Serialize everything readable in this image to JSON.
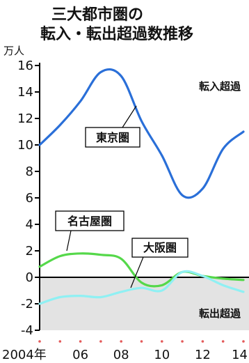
{
  "chart_data": {
    "type": "line",
    "title_line1": "三大都市圏の",
    "title_line2": "転入・転出超過数推移",
    "unit": "万人",
    "ylim": [
      -4,
      16
    ],
    "yticks": [
      16,
      14,
      12,
      10,
      8,
      6,
      4,
      2,
      0,
      -2,
      -4
    ],
    "xlim": [
      2004,
      2014
    ],
    "xticks": [
      {
        "x": 2004,
        "label": "2004年"
      },
      {
        "x": 2006,
        "label": "06"
      },
      {
        "x": 2008,
        "label": "08"
      },
      {
        "x": 2010,
        "label": "10"
      },
      {
        "x": 2012,
        "label": "12"
      },
      {
        "x": 2014,
        "label": "14"
      }
    ],
    "grid": false,
    "annotations": {
      "positive_region": "転入超過",
      "negative_region": "転出超過"
    },
    "series": [
      {
        "name": "東京圏",
        "color": "#2a6fd8",
        "x": [
          2004,
          2005,
          2006,
          2007,
          2008,
          2009,
          2010,
          2011,
          2012,
          2013,
          2014
        ],
        "values": [
          10.0,
          11.5,
          13.3,
          15.5,
          15.2,
          11.8,
          9.2,
          6.2,
          6.7,
          9.7,
          11.0
        ]
      },
      {
        "name": "名古屋圏",
        "color": "#55d84a",
        "x": [
          2004,
          2005,
          2006,
          2007,
          2008,
          2009,
          2010,
          2011,
          2012,
          2013,
          2014
        ],
        "values": [
          0.8,
          1.6,
          1.8,
          1.7,
          1.4,
          -0.4,
          -0.6,
          0.4,
          0.1,
          -0.1,
          -0.2
        ]
      },
      {
        "name": "大阪圏",
        "color": "#8ff0f3",
        "x": [
          2004,
          2005,
          2006,
          2007,
          2008,
          2009,
          2010,
          2011,
          2012,
          2013,
          2014
        ],
        "values": [
          -2.0,
          -1.5,
          -1.4,
          -1.5,
          -1.1,
          -0.8,
          -1.0,
          0.4,
          0.1,
          -0.6,
          -1.1
        ]
      }
    ]
  }
}
